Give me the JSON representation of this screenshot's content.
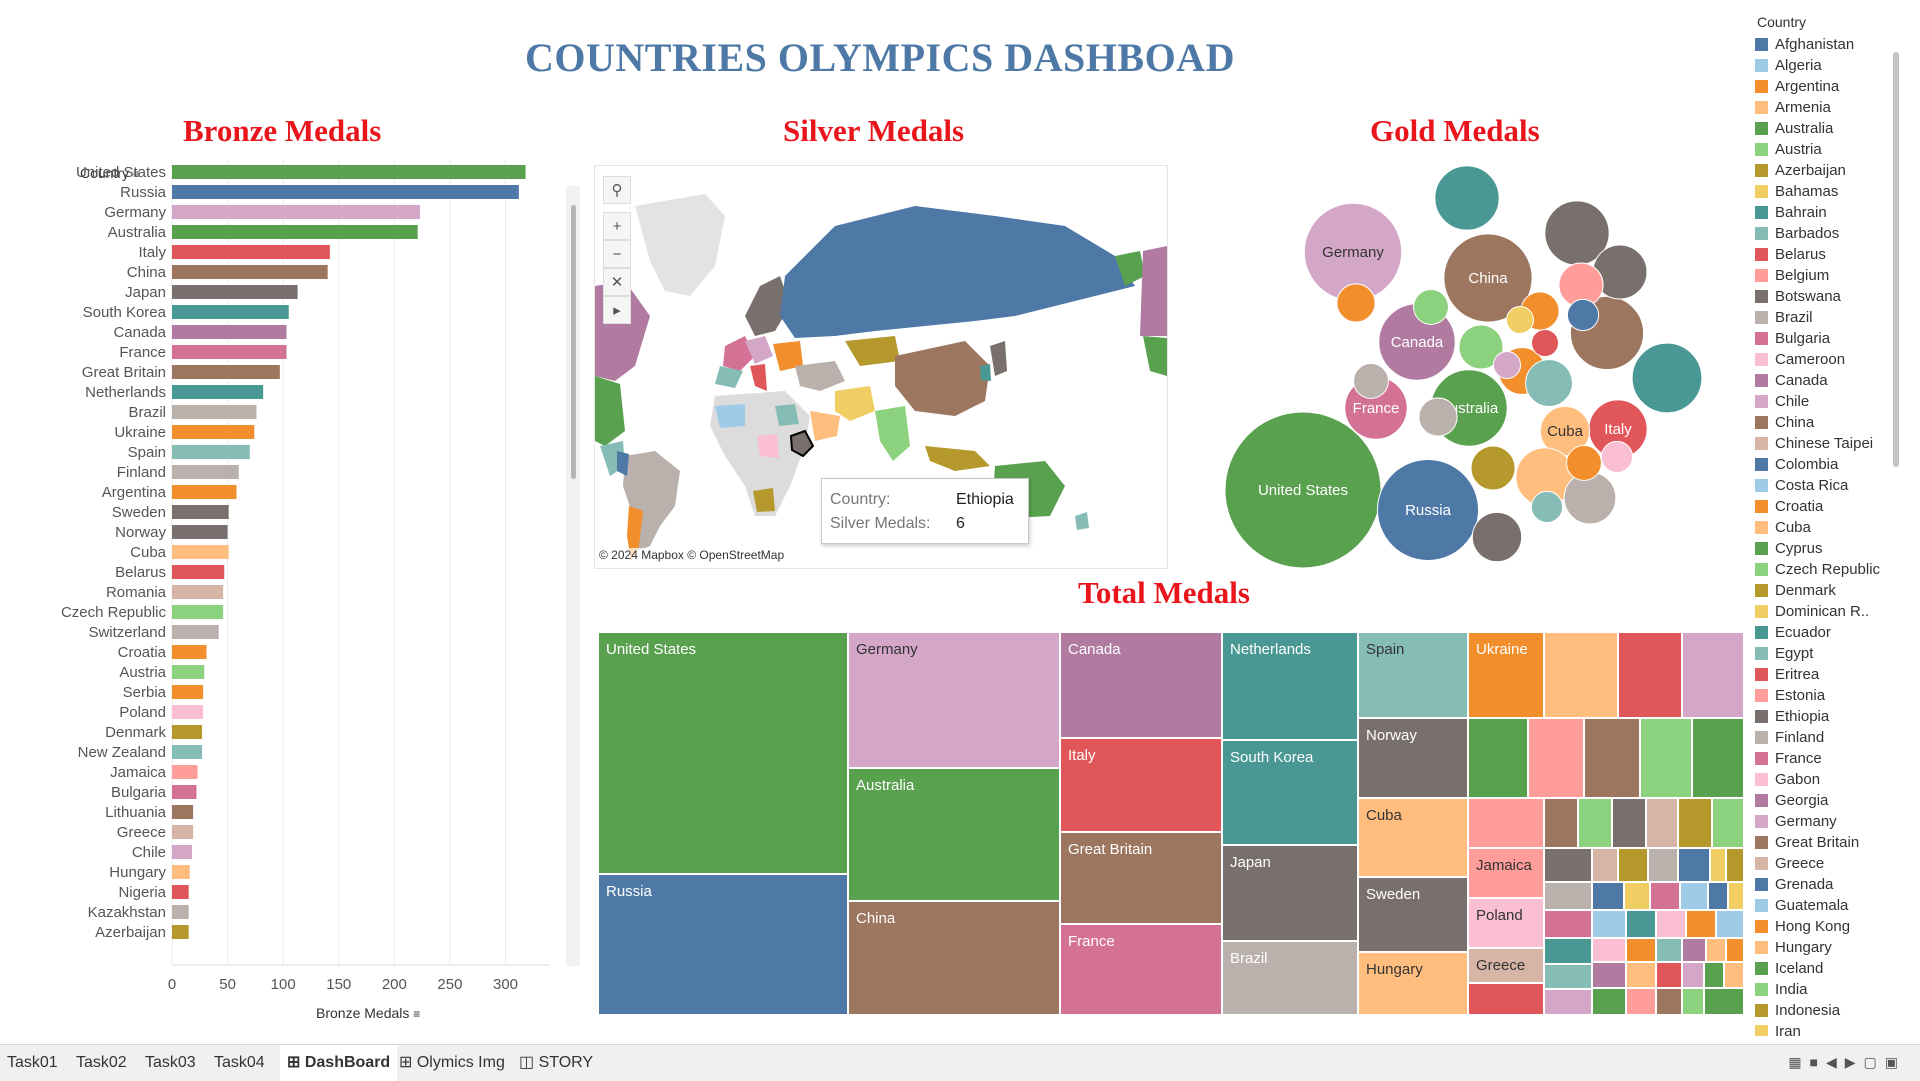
{
  "dashboard": {
    "title": "COUNTRIES OLYMPICS DASHBOAD",
    "bronze_title": "Bronze Medals",
    "silver_title": "Silver Medals",
    "gold_title": "Gold Medals",
    "total_title": "Total Medals"
  },
  "bar_chart": {
    "header": "Country",
    "x_title": "Bronze Medals",
    "tick_labels": [
      "0",
      "50",
      "100",
      "150",
      "200",
      "250",
      "300"
    ]
  },
  "map": {
    "attribution": "© 2024 Mapbox © OpenStreetMap",
    "tooltip_country_label": "Country:",
    "tooltip_country_value": "Ethiopia",
    "tooltip_medals_label": "Silver Medals:",
    "tooltip_medals_value": "6",
    "tools": [
      "search-icon",
      "zoom-in-icon",
      "zoom-out-icon",
      "pin-map-icon",
      "play-icon"
    ]
  },
  "legend": {
    "title": "Country",
    "items": [
      {
        "name": "Afghanistan",
        "color": "#4e79a7"
      },
      {
        "name": "Algeria",
        "color": "#a0cbe8"
      },
      {
        "name": "Argentina",
        "color": "#f28e2b"
      },
      {
        "name": "Armenia",
        "color": "#ffbe7d"
      },
      {
        "name": "Australia",
        "color": "#59a14f"
      },
      {
        "name": "Austria",
        "color": "#8cd17d"
      },
      {
        "name": "Azerbaijan",
        "color": "#b6992d"
      },
      {
        "name": "Bahamas",
        "color": "#f1ce63"
      },
      {
        "name": "Bahrain",
        "color": "#499894"
      },
      {
        "name": "Barbados",
        "color": "#86bcb6"
      },
      {
        "name": "Belarus",
        "color": "#e15759"
      },
      {
        "name": "Belgium",
        "color": "#ff9d9a"
      },
      {
        "name": "Botswana",
        "color": "#79706e"
      },
      {
        "name": "Brazil",
        "color": "#bab0ac"
      },
      {
        "name": "Bulgaria",
        "color": "#d37295"
      },
      {
        "name": "Cameroon",
        "color": "#fabfd2"
      },
      {
        "name": "Canada",
        "color": "#b07aa1"
      },
      {
        "name": "Chile",
        "color": "#d4a6c8"
      },
      {
        "name": "China",
        "color": "#9d7660"
      },
      {
        "name": "Chinese Taipei",
        "color": "#d7b5a6"
      },
      {
        "name": "Colombia",
        "color": "#4e79a7"
      },
      {
        "name": "Costa Rica",
        "color": "#a0cbe8"
      },
      {
        "name": "Croatia",
        "color": "#f28e2b"
      },
      {
        "name": "Cuba",
        "color": "#ffbe7d"
      },
      {
        "name": "Cyprus",
        "color": "#59a14f"
      },
      {
        "name": "Czech Republic",
        "color": "#8cd17d"
      },
      {
        "name": "Denmark",
        "color": "#b6992d"
      },
      {
        "name": "Dominican R..",
        "color": "#f1ce63"
      },
      {
        "name": "Ecuador",
        "color": "#499894"
      },
      {
        "name": "Egypt",
        "color": "#86bcb6"
      },
      {
        "name": "Eritrea",
        "color": "#e15759"
      },
      {
        "name": "Estonia",
        "color": "#ff9d9a"
      },
      {
        "name": "Ethiopia",
        "color": "#79706e"
      },
      {
        "name": "Finland",
        "color": "#bab0ac"
      },
      {
        "name": "France",
        "color": "#d37295"
      },
      {
        "name": "Gabon",
        "color": "#fabfd2"
      },
      {
        "name": "Georgia",
        "color": "#b07aa1"
      },
      {
        "name": "Germany",
        "color": "#d4a6c8"
      },
      {
        "name": "Great Britain",
        "color": "#9d7660"
      },
      {
        "name": "Greece",
        "color": "#d7b5a6"
      },
      {
        "name": "Grenada",
        "color": "#4e79a7"
      },
      {
        "name": "Guatemala",
        "color": "#a0cbe8"
      },
      {
        "name": "Hong Kong",
        "color": "#f28e2b"
      },
      {
        "name": "Hungary",
        "color": "#ffbe7d"
      },
      {
        "name": "Iceland",
        "color": "#59a14f"
      },
      {
        "name": "India",
        "color": "#8cd17d"
      },
      {
        "name": "Indonesia",
        "color": "#b6992d"
      },
      {
        "name": "Iran",
        "color": "#f1ce63"
      }
    ]
  },
  "chart_data": [
    {
      "type": "bar",
      "title": "Bronze Medals",
      "xlabel": "Bronze Medals",
      "ylabel": "Country",
      "xlim": [
        0,
        340
      ],
      "grid": true,
      "categories": [
        "United States",
        "Russia",
        "Germany",
        "Australia",
        "Italy",
        "China",
        "Japan",
        "South Korea",
        "Canada",
        "France",
        "Great Britain",
        "Netherlands",
        "Brazil",
        "Ukraine",
        "Spain",
        "Finland",
        "Argentina",
        "Sweden",
        "Norway",
        "Cuba",
        "Belarus",
        "Romania",
        "Czech Republic",
        "Switzerland",
        "Croatia",
        "Austria",
        "Serbia",
        "Poland",
        "Denmark",
        "New Zealand",
        "Jamaica",
        "Bulgaria",
        "Lithuania",
        "Greece",
        "Chile",
        "Hungary",
        "Nigeria",
        "Kazakhstan",
        "Azerbaijan"
      ],
      "values": [
        318,
        312,
        223,
        221,
        142,
        140,
        113,
        105,
        103,
        103,
        97,
        82,
        76,
        74,
        70,
        60,
        58,
        51,
        50,
        51,
        47,
        46,
        46,
        42,
        31,
        29,
        28,
        28,
        27,
        27,
        23,
        22,
        19,
        19,
        18,
        16,
        15,
        15,
        15
      ],
      "colors": [
        "#59a14f",
        "#4e79a7",
        "#d4a6c8",
        "#59a14f",
        "#e15759",
        "#9d7660",
        "#79706e",
        "#499894",
        "#b07aa1",
        "#d37295",
        "#9d7660",
        "#499894",
        "#bab0ac",
        "#f28e2b",
        "#86bcb6",
        "#bab0ac",
        "#f28e2b",
        "#79706e",
        "#79706e",
        "#ffbe7d",
        "#e15759",
        "#d7b5a6",
        "#8cd17d",
        "#bab0ac",
        "#f28e2b",
        "#8cd17d",
        "#f28e2b",
        "#fabfd2",
        "#b6992d",
        "#86bcb6",
        "#ff9d9a",
        "#d37295",
        "#9d7660",
        "#d7b5a6",
        "#d4a6c8",
        "#ffbe7d",
        "#e15759",
        "#bab0ac",
        "#b6992d"
      ]
    },
    {
      "type": "map",
      "title": "Silver Medals",
      "highlighted": {
        "country": "Ethiopia",
        "silver_medals": 6
      }
    },
    {
      "type": "bubble",
      "title": "Gold Medals",
      "series": [
        {
          "label": "United States",
          "value": 100,
          "color": "#59a14f"
        },
        {
          "label": "Russia",
          "value": 42,
          "color": "#4e79a7"
        },
        {
          "label": "Germany",
          "value": 39,
          "color": "#d4a6c8"
        },
        {
          "label": "China",
          "value": 32,
          "color": "#9d7660"
        },
        {
          "label": "Canada",
          "value": 24,
          "color": "#b07aa1"
        },
        {
          "label": "Australia",
          "value": 24,
          "color": "#59a14f"
        },
        {
          "label": "France",
          "value": 16,
          "color": "#d37295"
        },
        {
          "label": "Italy",
          "value": 14,
          "color": "#e15759"
        },
        {
          "label": "Cuba",
          "value": 10,
          "color": "#ffbe7d"
        },
        {
          "label": "",
          "value": 22,
          "color": "#9d7660"
        },
        {
          "label": "",
          "value": 20,
          "color": "#499894"
        },
        {
          "label": "",
          "value": 17,
          "color": "#499894"
        },
        {
          "label": "",
          "value": 17,
          "color": "#79706e"
        },
        {
          "label": "",
          "value": 12,
          "color": "#79706e"
        },
        {
          "label": "",
          "value": 14,
          "color": "#ffbe7d"
        },
        {
          "label": "",
          "value": 11,
          "color": "#bab0ac"
        },
        {
          "label": "",
          "value": 10,
          "color": "#79706e"
        },
        {
          "label": "",
          "value": 9,
          "color": "#f28e2b"
        },
        {
          "label": "",
          "value": 9,
          "color": "#86bcb6"
        },
        {
          "label": "",
          "value": 8,
          "color": "#b6992d"
        },
        {
          "label": "",
          "value": 8,
          "color": "#8cd17d"
        },
        {
          "label": "",
          "value": 8,
          "color": "#ff9d9a"
        },
        {
          "label": "",
          "value": 6,
          "color": "#f28e2b"
        },
        {
          "label": "",
          "value": 6,
          "color": "#f28e2b"
        },
        {
          "label": "",
          "value": 6,
          "color": "#bab0ac"
        },
        {
          "label": "",
          "value": 5,
          "color": "#bab0ac"
        },
        {
          "label": "",
          "value": 5,
          "color": "#8cd17d"
        },
        {
          "label": "",
          "value": 5,
          "color": "#f28e2b"
        },
        {
          "label": "",
          "value": 4,
          "color": "#86bcb6"
        },
        {
          "label": "",
          "value": 4,
          "color": "#fabfd2"
        },
        {
          "label": "",
          "value": 4,
          "color": "#4e79a7"
        },
        {
          "label": "",
          "value": 3,
          "color": "#d4a6c8"
        },
        {
          "label": "",
          "value": 3,
          "color": "#e15759"
        },
        {
          "label": "",
          "value": 3,
          "color": "#f1ce63"
        }
      ]
    },
    {
      "type": "treemap",
      "title": "Total Medals",
      "series": [
        {
          "label": "United States",
          "color": "#59a14f"
        },
        {
          "label": "Russia",
          "color": "#4e79a7"
        },
        {
          "label": "Germany",
          "color": "#d4a6c8"
        },
        {
          "label": "Australia",
          "color": "#59a14f"
        },
        {
          "label": "China",
          "color": "#9d7660"
        },
        {
          "label": "Canada",
          "color": "#b07aa1"
        },
        {
          "label": "Italy",
          "color": "#e15759"
        },
        {
          "label": "Great Britain",
          "color": "#9d7660"
        },
        {
          "label": "France",
          "color": "#d37295"
        },
        {
          "label": "Netherlands",
          "color": "#499894"
        },
        {
          "label": "South Korea",
          "color": "#499894"
        },
        {
          "label": "Japan",
          "color": "#79706e"
        },
        {
          "label": "Brazil",
          "color": "#bab0ac"
        },
        {
          "label": "Spain",
          "color": "#86bcb6"
        },
        {
          "label": "Norway",
          "color": "#79706e"
        },
        {
          "label": "Cuba",
          "color": "#ffbe7d"
        },
        {
          "label": "Sweden",
          "color": "#79706e"
        },
        {
          "label": "Hungary",
          "color": "#ffbe7d"
        },
        {
          "label": "Ukraine",
          "color": "#f28e2b"
        },
        {
          "label": "Jamaica",
          "color": "#ff9d9a"
        },
        {
          "label": "Poland",
          "color": "#fabfd2"
        },
        {
          "label": "Greece",
          "color": "#d7b5a6"
        }
      ]
    }
  ]
}
